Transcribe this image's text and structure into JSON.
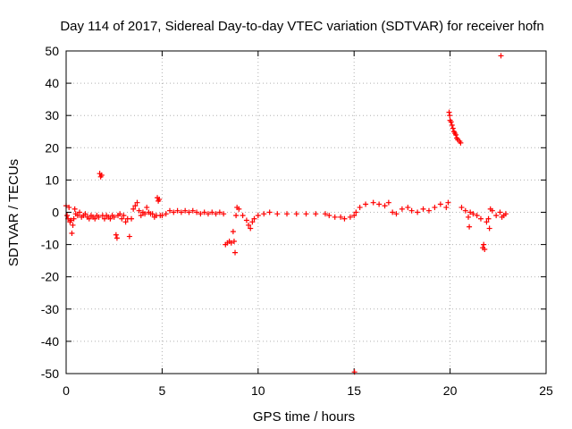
{
  "chart_data": {
    "type": "scatter",
    "title": "Day 114 of 2017, Sidereal Day-to-day VTEC variation (SDTVAR) for receiver hofn",
    "xlabel": "GPS time / hours",
    "ylabel": "SDTVAR / TECUs",
    "xlim": [
      0,
      25
    ],
    "ylim": [
      -50,
      50
    ],
    "x_ticks": [
      0,
      5,
      10,
      15,
      20,
      25
    ],
    "y_ticks": [
      -50,
      -40,
      -30,
      -20,
      -10,
      0,
      10,
      20,
      30,
      40,
      50
    ],
    "x_tick_labels": [
      "0",
      "5",
      "10",
      "15",
      "20",
      "25"
    ],
    "y_tick_labels": [
      "-50",
      "-40",
      "-30",
      "-20",
      "-10",
      "0",
      "10",
      "20",
      "30",
      "40",
      "50"
    ],
    "grid": true,
    "marker": "+",
    "colors": {
      "series": "#ff0000",
      "grid": "#b0b0b0",
      "axes": "#000000"
    },
    "series": [
      {
        "name": "SDTVAR",
        "points": [
          [
            0.0,
            2.0
          ],
          [
            0.05,
            -1.0
          ],
          [
            0.1,
            -2.0
          ],
          [
            0.15,
            1.5
          ],
          [
            0.2,
            -3.0
          ],
          [
            0.25,
            -2.5
          ],
          [
            0.3,
            -6.5
          ],
          [
            0.35,
            -4.0
          ],
          [
            0.4,
            -2.0
          ],
          [
            0.45,
            1.0
          ],
          [
            0.5,
            -0.5
          ],
          [
            0.6,
            -1.0
          ],
          [
            0.7,
            0.0
          ],
          [
            0.8,
            -1.5
          ],
          [
            0.9,
            -1.0
          ],
          [
            1.0,
            -0.5
          ],
          [
            1.1,
            -1.5
          ],
          [
            1.2,
            -2.0
          ],
          [
            1.3,
            -1.0
          ],
          [
            1.4,
            -1.5
          ],
          [
            1.5,
            -2.0
          ],
          [
            1.6,
            -1.0
          ],
          [
            1.7,
            -1.5
          ],
          [
            1.75,
            12.0
          ],
          [
            1.8,
            11.0
          ],
          [
            1.85,
            11.5
          ],
          [
            1.9,
            -1.0
          ],
          [
            2.0,
            -2.0
          ],
          [
            2.1,
            -1.0
          ],
          [
            2.2,
            -1.5
          ],
          [
            2.3,
            -2.0
          ],
          [
            2.4,
            -1.0
          ],
          [
            2.5,
            -1.5
          ],
          [
            2.6,
            -7.0
          ],
          [
            2.65,
            -8.0
          ],
          [
            2.7,
            -1.0
          ],
          [
            2.8,
            -0.5
          ],
          [
            2.9,
            -2.0
          ],
          [
            3.0,
            -1.0
          ],
          [
            3.1,
            -3.0
          ],
          [
            3.2,
            -2.0
          ],
          [
            3.3,
            -7.5
          ],
          [
            3.4,
            -2.0
          ],
          [
            3.5,
            1.0
          ],
          [
            3.6,
            2.0
          ],
          [
            3.7,
            3.0
          ],
          [
            3.8,
            0.5
          ],
          [
            3.9,
            -1.0
          ],
          [
            4.0,
            0.0
          ],
          [
            4.1,
            -0.5
          ],
          [
            4.2,
            1.5
          ],
          [
            4.3,
            0.0
          ],
          [
            4.4,
            -0.5
          ],
          [
            4.5,
            -0.5
          ],
          [
            4.6,
            -1.5
          ],
          [
            4.7,
            -1.0
          ],
          [
            4.75,
            4.5
          ],
          [
            4.8,
            3.5
          ],
          [
            4.85,
            4.0
          ],
          [
            4.9,
            -1.0
          ],
          [
            5.0,
            -1.0
          ],
          [
            5.2,
            -0.5
          ],
          [
            5.4,
            0.5
          ],
          [
            5.6,
            0.0
          ],
          [
            5.8,
            0.5
          ],
          [
            6.0,
            0.0
          ],
          [
            6.2,
            0.5
          ],
          [
            6.4,
            0.0
          ],
          [
            6.6,
            0.5
          ],
          [
            6.8,
            0.0
          ],
          [
            7.0,
            -0.5
          ],
          [
            7.2,
            0.0
          ],
          [
            7.4,
            -0.5
          ],
          [
            7.6,
            0.0
          ],
          [
            7.8,
            -0.5
          ],
          [
            8.0,
            0.0
          ],
          [
            8.2,
            -0.5
          ],
          [
            8.3,
            -10.0
          ],
          [
            8.4,
            -9.5
          ],
          [
            8.5,
            -9.0
          ],
          [
            8.6,
            -9.5
          ],
          [
            8.7,
            -6.0
          ],
          [
            8.75,
            -9.0
          ],
          [
            8.8,
            -12.5
          ],
          [
            8.85,
            -1.0
          ],
          [
            8.9,
            1.5
          ],
          [
            9.0,
            1.0
          ],
          [
            9.2,
            -1.0
          ],
          [
            9.4,
            -2.5
          ],
          [
            9.5,
            -4.0
          ],
          [
            9.6,
            -5.0
          ],
          [
            9.7,
            -3.0
          ],
          [
            9.8,
            -2.0
          ],
          [
            10.0,
            -1.0
          ],
          [
            10.3,
            -0.5
          ],
          [
            10.6,
            0.0
          ],
          [
            11.0,
            -0.5
          ],
          [
            11.5,
            -0.5
          ],
          [
            12.0,
            -0.5
          ],
          [
            12.5,
            -0.5
          ],
          [
            13.0,
            -0.5
          ],
          [
            13.5,
            -0.5
          ],
          [
            13.7,
            -1.0
          ],
          [
            14.0,
            -1.5
          ],
          [
            14.3,
            -1.5
          ],
          [
            14.5,
            -2.0
          ],
          [
            14.8,
            -1.5
          ],
          [
            15.0,
            -1.0
          ],
          [
            15.02,
            -49.5
          ],
          [
            15.1,
            0.0
          ],
          [
            15.3,
            1.5
          ],
          [
            15.6,
            2.5
          ],
          [
            16.0,
            3.0
          ],
          [
            16.3,
            2.5
          ],
          [
            16.6,
            2.0
          ],
          [
            16.8,
            3.0
          ],
          [
            17.0,
            0.0
          ],
          [
            17.2,
            -0.5
          ],
          [
            17.5,
            1.0
          ],
          [
            17.8,
            1.5
          ],
          [
            18.0,
            0.5
          ],
          [
            18.3,
            0.0
          ],
          [
            18.6,
            1.0
          ],
          [
            18.9,
            0.5
          ],
          [
            19.2,
            1.5
          ],
          [
            19.5,
            2.5
          ],
          [
            19.8,
            1.5
          ],
          [
            19.9,
            3.0
          ],
          [
            19.95,
            31.0
          ],
          [
            19.98,
            30.0
          ],
          [
            20.0,
            28.5
          ],
          [
            20.05,
            28.0
          ],
          [
            20.1,
            27.0
          ],
          [
            20.15,
            26.0
          ],
          [
            20.2,
            25.0
          ],
          [
            20.25,
            24.5
          ],
          [
            20.3,
            24.0
          ],
          [
            20.35,
            23.0
          ],
          [
            20.4,
            22.5
          ],
          [
            20.5,
            22.0
          ],
          [
            20.55,
            21.5
          ],
          [
            20.6,
            1.5
          ],
          [
            20.8,
            0.5
          ],
          [
            20.95,
            -1.5
          ],
          [
            21.0,
            -4.5
          ],
          [
            21.05,
            0.0
          ],
          [
            21.2,
            -0.5
          ],
          [
            21.4,
            -1.0
          ],
          [
            21.6,
            -2.0
          ],
          [
            21.7,
            -11.0
          ],
          [
            21.75,
            -10.0
          ],
          [
            21.8,
            -11.5
          ],
          [
            21.9,
            -3.0
          ],
          [
            22.0,
            -2.0
          ],
          [
            22.05,
            -5.0
          ],
          [
            22.1,
            1.0
          ],
          [
            22.2,
            0.5
          ],
          [
            22.4,
            -1.0
          ],
          [
            22.6,
            0.0
          ],
          [
            22.65,
            48.5
          ],
          [
            22.7,
            -1.5
          ],
          [
            22.8,
            -1.0
          ],
          [
            22.9,
            -0.5
          ]
        ]
      }
    ]
  }
}
